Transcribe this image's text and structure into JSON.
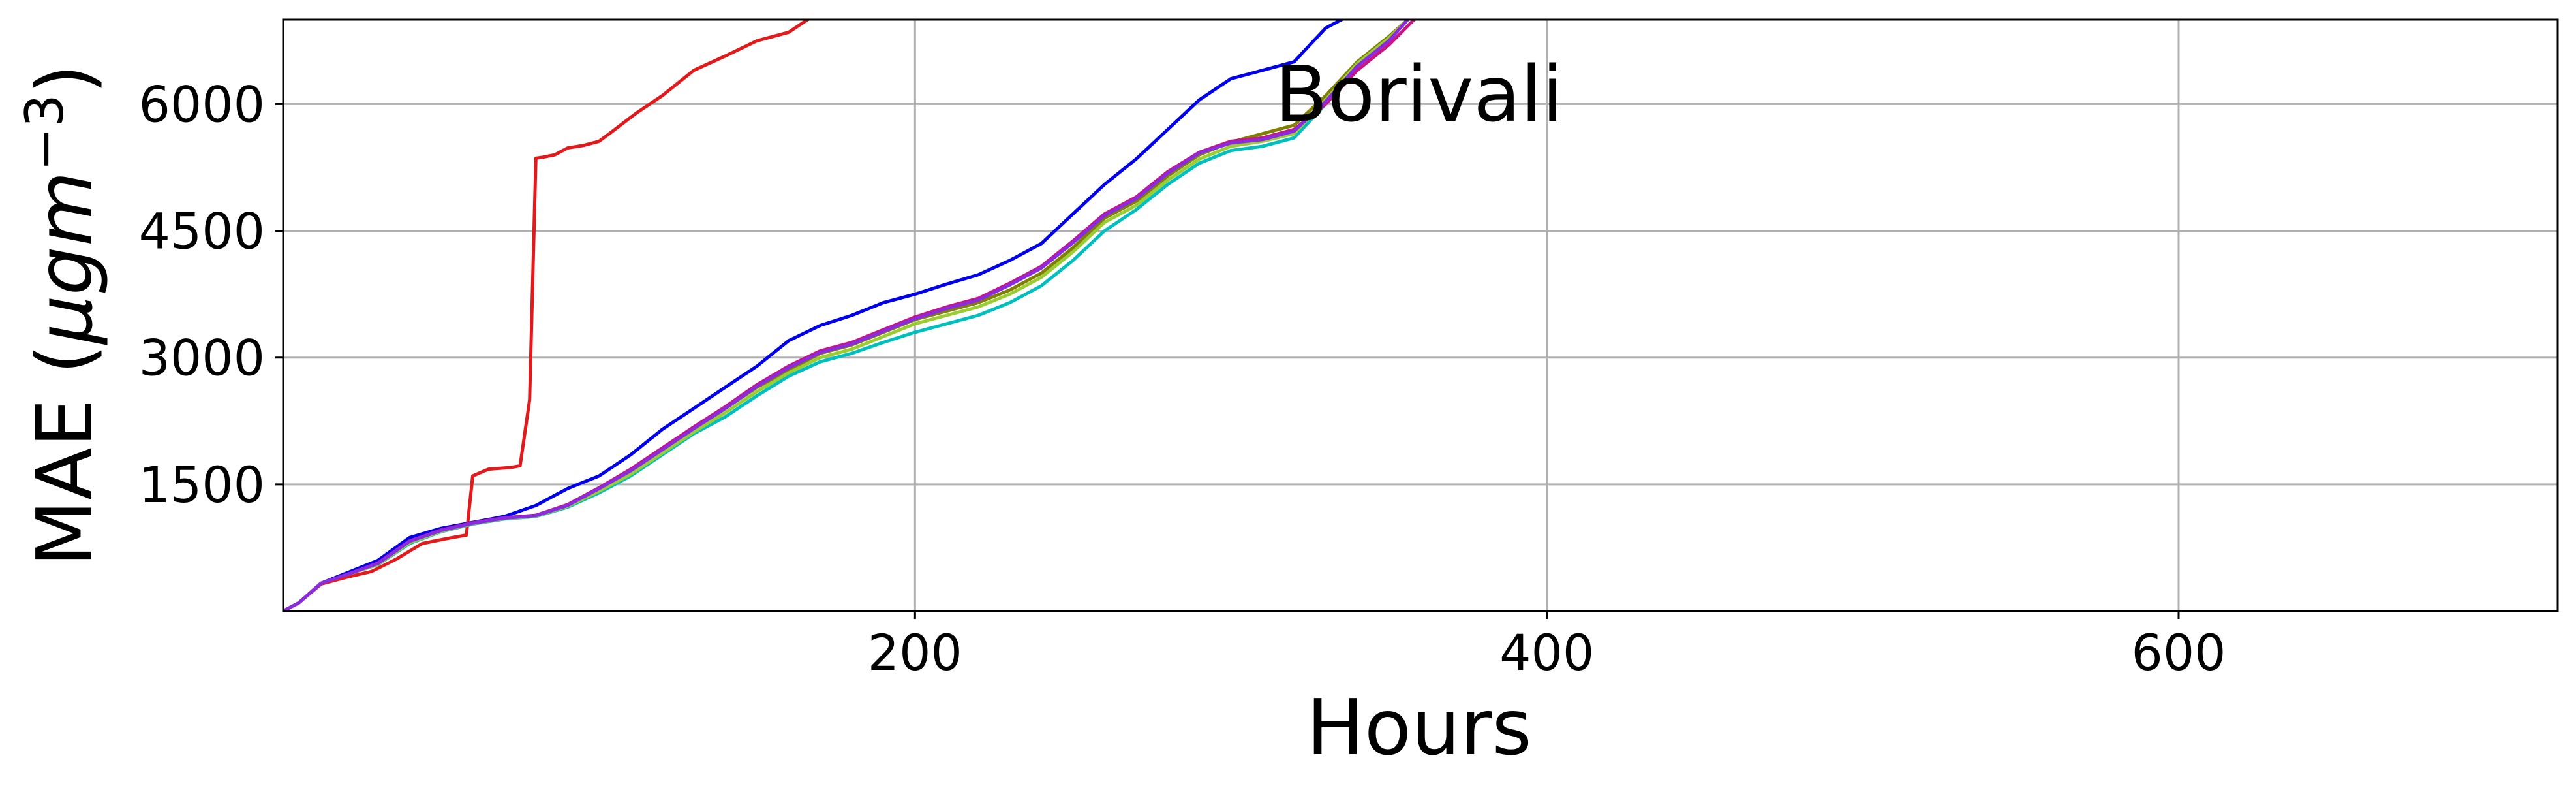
{
  "chart_data": {
    "type": "line",
    "title": "Borivali",
    "xlabel": "Hours",
    "ylabel": "MAE (μgm⁻³)",
    "ylabel_parts": {
      "prefix": "MAE (",
      "mu": "μ",
      "g": "g",
      "m": "m",
      "sup": "−3",
      "suffix": ")"
    },
    "xlim": [
      0,
      720
    ],
    "ylim": [
      0,
      7000
    ],
    "xticks": [
      200,
      400,
      600
    ],
    "xtick_labels": [
      "200",
      "400",
      "600"
    ],
    "yticks": [
      1500,
      3000,
      4500,
      6000
    ],
    "ytick_labels": [
      "1500",
      "3000",
      "4500",
      "6000"
    ],
    "grid": true,
    "legend": false,
    "series": [
      {
        "color": "#e31a1c",
        "x": [
          0,
          5,
          12,
          20,
          28,
          36,
          44,
          52,
          58,
          60,
          65,
          72,
          75,
          78,
          80,
          82,
          86,
          90,
          95,
          100,
          105,
          112,
          120,
          130,
          140,
          150,
          160,
          166,
          170
        ],
        "y": [
          0,
          100,
          320,
          400,
          470,
          620,
          800,
          860,
          900,
          1600,
          1680,
          1700,
          1720,
          2500,
          5360,
          5370,
          5400,
          5480,
          5510,
          5560,
          5700,
          5900,
          6100,
          6400,
          6570,
          6750,
          6850,
          7000,
          7100
        ]
      },
      {
        "color": "#0000ee",
        "x": [
          0,
          5,
          12,
          20,
          30,
          40,
          50,
          60,
          70,
          80,
          90,
          100,
          110,
          120,
          130,
          140,
          150,
          160,
          170,
          180,
          190,
          200,
          210,
          220,
          230,
          240,
          250,
          260,
          270,
          280,
          290,
          300,
          310,
          320,
          325,
          330,
          335,
          340
        ],
        "y": [
          0,
          100,
          330,
          450,
          600,
          870,
          980,
          1050,
          1120,
          1250,
          1450,
          1600,
          1850,
          2150,
          2400,
          2650,
          2900,
          3200,
          3380,
          3500,
          3650,
          3750,
          3870,
          3980,
          4150,
          4350,
          4700,
          5050,
          5350,
          5700,
          6050,
          6300,
          6400,
          6500,
          6700,
          6900,
          7000,
          7100
        ]
      },
      {
        "color": "#808000",
        "x": [
          0,
          5,
          12,
          20,
          30,
          40,
          50,
          60,
          70,
          80,
          90,
          100,
          110,
          120,
          130,
          140,
          150,
          160,
          170,
          180,
          190,
          200,
          210,
          220,
          230,
          240,
          250,
          260,
          270,
          280,
          290,
          300,
          310,
          320,
          330,
          340,
          350,
          356,
          360
        ],
        "y": [
          0,
          100,
          330,
          430,
          560,
          820,
          950,
          1040,
          1100,
          1130,
          1250,
          1450,
          1650,
          1900,
          2150,
          2400,
          2650,
          2850,
          3050,
          3150,
          3300,
          3450,
          3550,
          3650,
          3800,
          4000,
          4300,
          4650,
          4850,
          5150,
          5400,
          5550,
          5650,
          5750,
          6100,
          6500,
          6800,
          7000,
          7100
        ]
      },
      {
        "color": "#00bfbf",
        "x": [
          0,
          5,
          12,
          20,
          30,
          40,
          50,
          60,
          70,
          80,
          90,
          100,
          110,
          120,
          130,
          140,
          150,
          160,
          170,
          180,
          190,
          200,
          210,
          220,
          230,
          240,
          250,
          260,
          270,
          280,
          290,
          300,
          310,
          320,
          330,
          340,
          350,
          356,
          360
        ],
        "y": [
          0,
          100,
          330,
          430,
          550,
          800,
          940,
          1030,
          1090,
          1120,
          1230,
          1400,
          1600,
          1850,
          2100,
          2300,
          2550,
          2780,
          2950,
          3050,
          3180,
          3300,
          3400,
          3500,
          3650,
          3850,
          4150,
          4500,
          4750,
          5050,
          5300,
          5450,
          5500,
          5600,
          6000,
          6450,
          6750,
          7000,
          7100
        ]
      },
      {
        "color": "#9acd32",
        "x": [
          0,
          5,
          12,
          20,
          30,
          40,
          50,
          60,
          70,
          80,
          90,
          100,
          110,
          120,
          130,
          140,
          150,
          160,
          170,
          180,
          190,
          200,
          210,
          220,
          230,
          240,
          250,
          260,
          270,
          280,
          290,
          300,
          310,
          320,
          330,
          340,
          350,
          356,
          360
        ],
        "y": [
          0,
          100,
          330,
          430,
          555,
          810,
          945,
          1035,
          1095,
          1125,
          1240,
          1420,
          1620,
          1870,
          2120,
          2350,
          2600,
          2820,
          3000,
          3100,
          3250,
          3400,
          3500,
          3600,
          3750,
          3950,
          4250,
          4600,
          4800,
          5100,
          5350,
          5500,
          5560,
          5650,
          6050,
          6480,
          6780,
          7000,
          7100
        ]
      },
      {
        "color": "#c71585",
        "x": [
          0,
          5,
          12,
          20,
          30,
          40,
          50,
          60,
          70,
          80,
          90,
          100,
          110,
          120,
          130,
          140,
          150,
          160,
          170,
          180,
          190,
          200,
          210,
          220,
          230,
          240,
          250,
          260,
          270,
          280,
          290,
          300,
          310,
          320,
          330,
          340,
          350,
          358,
          362
        ],
        "y": [
          0,
          100,
          330,
          430,
          570,
          830,
          960,
          1045,
          1105,
          1135,
          1260,
          1460,
          1680,
          1930,
          2180,
          2420,
          2680,
          2900,
          3080,
          3180,
          3330,
          3480,
          3600,
          3700,
          3880,
          4080,
          4380,
          4700,
          4900,
          5200,
          5430,
          5560,
          5600,
          5700,
          6000,
          6400,
          6700,
          7000,
          7100
        ]
      },
      {
        "color": "#8a2be2",
        "x": [
          0,
          5,
          12,
          20,
          30,
          40,
          50,
          60,
          70,
          80,
          90,
          100,
          110,
          120,
          130,
          140,
          150,
          160,
          170,
          180,
          190,
          200,
          210,
          220,
          230,
          240,
          250,
          260,
          270,
          280,
          290,
          300,
          310,
          320,
          330,
          340,
          350,
          356,
          360
        ],
        "y": [
          0,
          100,
          330,
          430,
          565,
          825,
          955,
          1040,
          1100,
          1130,
          1250,
          1450,
          1660,
          1910,
          2160,
          2400,
          2660,
          2880,
          3060,
          3160,
          3310,
          3460,
          3580,
          3680,
          3860,
          4060,
          4360,
          4680,
          4880,
          5180,
          5420,
          5540,
          5580,
          5680,
          6030,
          6450,
          6750,
          7000,
          7100
        ]
      }
    ]
  }
}
